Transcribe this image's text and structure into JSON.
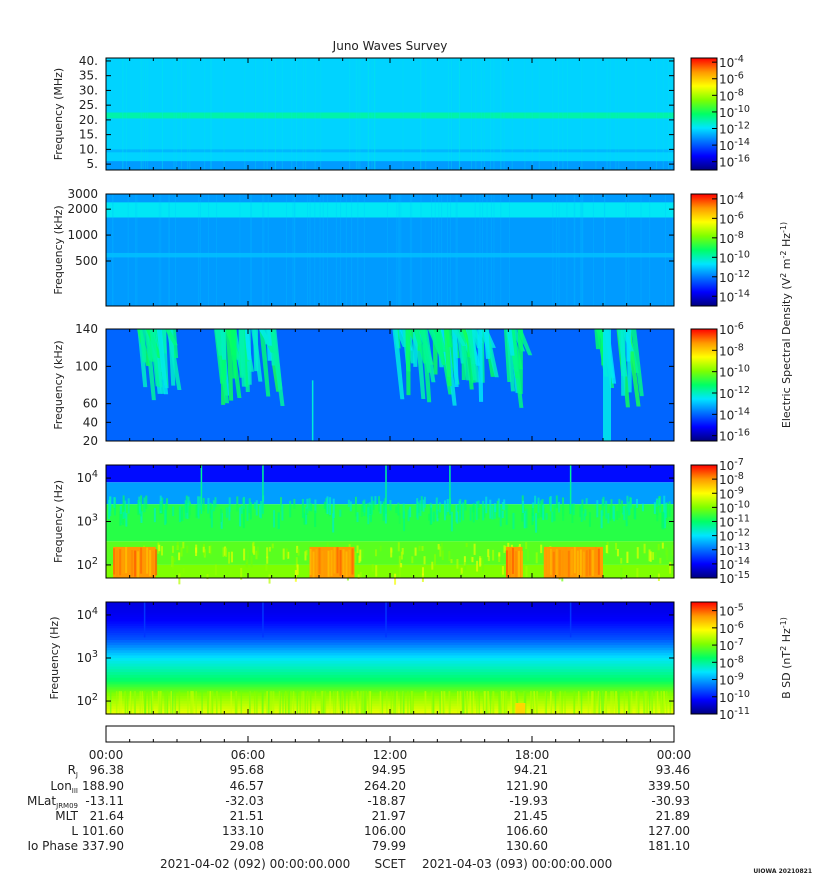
{
  "title": "Juno Waves Survey",
  "footer_label": "UIOWA 20210821",
  "colors": {
    "colormap": [
      "#000080",
      "#0000ff",
      "#0070ff",
      "#00e5ff",
      "#00ff66",
      "#7fff00",
      "#ffff00",
      "#ff9900",
      "#ff0000"
    ],
    "axis": "#000000",
    "text": "#222222"
  },
  "chart_data": [
    {
      "type": "heatmap",
      "ylabel": "Frequency (MHz)",
      "yscale": "linear",
      "ylim": [
        3,
        41
      ],
      "yticks": [
        "40.",
        "35.",
        "30.",
        "25.",
        "20.",
        "15.",
        "10.",
        "5."
      ],
      "ytick_values": [
        40,
        35,
        30,
        25,
        20,
        15,
        10,
        5
      ],
      "colorbar": {
        "label": "",
        "ticks": [
          "10-4",
          "10-6",
          "10-8",
          "10-10",
          "10-12",
          "10-14",
          "10-16"
        ],
        "exponents": [
          -4,
          -6,
          -8,
          -10,
          -12,
          -14,
          -16
        ],
        "range": [
          -17,
          -3.5
        ]
      },
      "background_log_value": -12.2,
      "bands": [
        {
          "y": [
            20.5,
            22.5
          ],
          "log_value": -11.0
        },
        {
          "y": [
            9,
            10
          ],
          "log_value": -12.6
        },
        {
          "y": [
            3,
            6
          ],
          "log_value": -13.0
        }
      ]
    },
    {
      "type": "heatmap",
      "ylabel": "Frequency (kHz)",
      "yscale": "log",
      "ylim": [
        150,
        3000
      ],
      "yticks": [
        "3000",
        "2000",
        "1000",
        "500"
      ],
      "ytick_values": [
        3000,
        2000,
        1000,
        500
      ],
      "colorbar": {
        "label": "Electric Spectral Density (V2 m-2 Hz-1)",
        "ticks": [
          "10-4",
          "10-6",
          "10-8",
          "10-10",
          "10-12",
          "10-14"
        ],
        "exponents": [
          -4,
          -6,
          -8,
          -10,
          -12,
          -14
        ],
        "range": [
          -15,
          -3.5
        ]
      },
      "background_log_value": -11.6,
      "bands": [
        {
          "y": [
            1600,
            2400
          ],
          "log_value": -10.6
        },
        {
          "y": [
            550,
            620
          ],
          "log_value": -11.2
        }
      ]
    },
    {
      "type": "heatmap",
      "ylabel": "Frequency (kHz)",
      "yscale": "linear",
      "ylim": [
        20,
        140
      ],
      "yticks": [
        "140",
        "100",
        "60",
        "40",
        "20"
      ],
      "ytick_values": [
        140,
        100,
        60,
        40,
        20
      ],
      "colorbar": {
        "label": "",
        "ticks": [
          "10-6",
          "10-8",
          "10-10",
          "10-12",
          "10-14",
          "10-16"
        ],
        "exponents": [
          -6,
          -8,
          -10,
          -12,
          -14,
          -16
        ],
        "range": [
          -16.5,
          -6
        ]
      },
      "background_log_value": -14.0,
      "bursts": [
        [
          1.2,
          2.8
        ],
        [
          4.5,
          7.0
        ],
        [
          12.0,
          16.0
        ],
        [
          16.8,
          17.6
        ],
        [
          20.6,
          21.2
        ],
        [
          21.5,
          22.2
        ]
      ]
    },
    {
      "type": "heatmap",
      "ylabel": "Frequency (Hz)",
      "yscale": "log",
      "ylim": [
        50,
        20000
      ],
      "yticks": [
        "10^4",
        "10^3",
        "10^2"
      ],
      "ytick_values": [
        10000,
        1000,
        100
      ],
      "colorbar": {
        "label": "",
        "ticks": [
          "10-7",
          "10-8",
          "10-9",
          "10-10",
          "10-11",
          "10-12",
          "10-13",
          "10-14",
          "10-15"
        ],
        "exponents": [
          -7,
          -8,
          -9,
          -10,
          -11,
          -12,
          -13,
          -14,
          -15
        ],
        "range": [
          -15,
          -7
        ]
      },
      "layers": [
        {
          "y": [
            8000,
            20000
          ],
          "log_value": -13.9
        },
        {
          "y": [
            2500,
            8000
          ],
          "log_value": -12.6
        },
        {
          "y": [
            350,
            2500
          ],
          "log_value": -10.7
        },
        {
          "y": [
            100,
            350
          ],
          "log_value": -10.3
        },
        {
          "y": [
            50,
            100
          ],
          "log_value": -10.0
        }
      ],
      "hot_segments": [
        [
          0.3,
          2.1
        ],
        [
          8.6,
          10.5
        ],
        [
          16.9,
          17.6
        ],
        [
          18.5,
          21.0
        ]
      ]
    },
    {
      "type": "heatmap",
      "ylabel": "Frequency (Hz)",
      "yscale": "log",
      "ylim": [
        50,
        20000
      ],
      "yticks": [
        "10^4",
        "10^3",
        "10^2"
      ],
      "ytick_values": [
        10000,
        1000,
        100
      ],
      "colorbar": {
        "label": "B SD (nT2 Hz-1)",
        "ticks": [
          "10-5",
          "10-6",
          "10-7",
          "10-8",
          "10-9",
          "10-10",
          "10-11"
        ],
        "exponents": [
          -5,
          -6,
          -7,
          -8,
          -9,
          -10,
          -11
        ],
        "range": [
          -11,
          -4.5
        ]
      },
      "gradient": [
        [
          20000,
          -10.4
        ],
        [
          8000,
          -10.2
        ],
        [
          3000,
          -9.6
        ],
        [
          1000,
          -8.5
        ],
        [
          300,
          -7.7
        ],
        [
          150,
          -6.9
        ],
        [
          50,
          -6.2
        ]
      ]
    }
  ],
  "ephemeris": {
    "time_ticks": [
      "00:00",
      "06:00",
      "12:00",
      "18:00",
      "00:00"
    ],
    "time_hours": [
      0,
      6,
      12,
      18,
      24
    ],
    "rows": [
      {
        "label": "Rj",
        "values": [
          "96.38",
          "95.68",
          "94.95",
          "94.21",
          "93.46"
        ]
      },
      {
        "label": "LonIII",
        "values": [
          "188.90",
          "46.57",
          "264.20",
          "121.90",
          "339.50"
        ]
      },
      {
        "label": "MLatJRM09",
        "values": [
          "-13.11",
          "-32.03",
          "-18.87",
          "-19.93",
          "-30.93"
        ]
      },
      {
        "label": "MLT",
        "values": [
          "21.64",
          "21.51",
          "21.97",
          "21.45",
          "21.89"
        ]
      },
      {
        "label": "L",
        "values": [
          "101.60",
          "133.10",
          "106.00",
          "106.60",
          "127.00"
        ]
      },
      {
        "label": "Io Phase",
        "values": [
          "337.90",
          "29.08",
          "79.99",
          "130.60",
          "181.10"
        ]
      }
    ]
  },
  "scet": {
    "start": "2021-04-02 (092) 00:00:00.000",
    "label": "SCET",
    "end": "2021-04-03 (093) 00:00:00.000"
  }
}
